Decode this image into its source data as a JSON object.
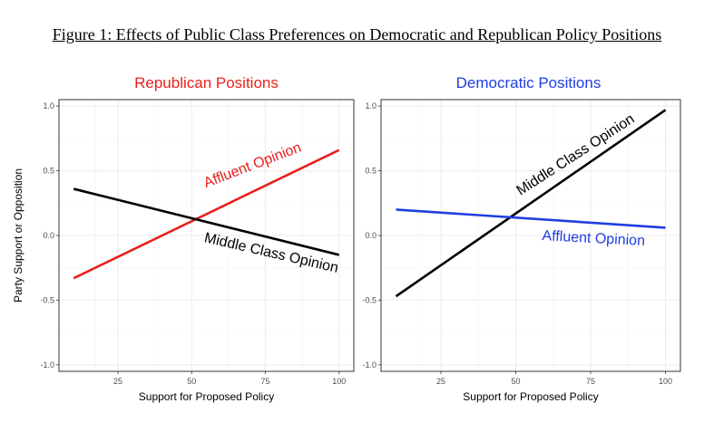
{
  "figure_title": "Figure 1: Effects of Public Class Preferences on Democratic and Republican Policy Positions",
  "colors": {
    "red": "#e8201c",
    "blue": "#1f3ee0",
    "black": "#000000",
    "grid": "#ebebeb"
  },
  "chart_data": [
    {
      "type": "line",
      "title": "Republican Positions",
      "title_color": "#e8201c",
      "xlabel": "Support for Proposed Policy",
      "ylabel": "Party Support or Opposition",
      "xlim": [
        5,
        105
      ],
      "ylim": [
        -1.05,
        1.05
      ],
      "xticks": [
        25,
        50,
        75,
        100
      ],
      "yticks": [
        1.0,
        0.5,
        0.0,
        -0.5,
        -1.0
      ],
      "ytick_labels": [
        "1.0",
        "0.5",
        "0.0",
        "-0.5",
        "-1.0"
      ],
      "series": [
        {
          "name": "Affluent Opinion",
          "color": "#e8201c",
          "x": [
            10,
            100
          ],
          "y": [
            -0.33,
            0.66
          ]
        },
        {
          "name": "Middle Class Opinion",
          "color": "#000000",
          "x": [
            10,
            100
          ],
          "y": [
            0.36,
            -0.15
          ]
        }
      ]
    },
    {
      "type": "line",
      "title": "Democratic Positions",
      "title_color": "#1f3ee0",
      "xlabel": "Support for Proposed Policy",
      "ylabel": "",
      "xlim": [
        5,
        105
      ],
      "ylim": [
        -1.05,
        1.05
      ],
      "xticks": [
        25,
        50,
        75,
        100
      ],
      "yticks": [
        1.0,
        0.5,
        0.0,
        -0.5,
        -1.0
      ],
      "ytick_labels": [
        "1.0",
        "0.5",
        "0.0",
        "-0.5",
        "-1.0"
      ],
      "series": [
        {
          "name": "Middle Class Opinion",
          "color": "#000000",
          "x": [
            10,
            100
          ],
          "y": [
            -0.47,
            0.97
          ]
        },
        {
          "name": "Affluent Opinion",
          "color": "#1f3ee0",
          "x": [
            10,
            100
          ],
          "y": [
            0.2,
            0.06
          ]
        }
      ]
    }
  ]
}
